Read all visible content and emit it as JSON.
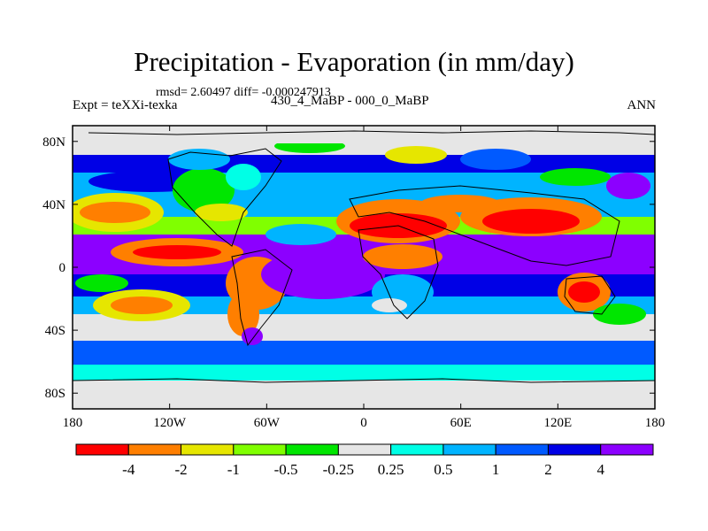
{
  "figure": {
    "title": "Precipitation - Evaporation (in mm/day)",
    "stats": "rmsd= 2.60497 diff= -0.000247913",
    "expt": "Expt = teXXi-texka",
    "period": "430_4_MaBP - 000_0_MaBP",
    "season": "ANN"
  },
  "map": {
    "projection": "cylindrical-equidistant",
    "lon_range": [
      -180,
      180
    ],
    "lat_range": [
      -90,
      90
    ],
    "coastlines": true,
    "x_ticks": [
      {
        "value": -180,
        "label": "180"
      },
      {
        "value": -120,
        "label": "120W"
      },
      {
        "value": -60,
        "label": "60W"
      },
      {
        "value": 0,
        "label": "0"
      },
      {
        "value": 60,
        "label": "60E"
      },
      {
        "value": 120,
        "label": "120E"
      },
      {
        "value": 180,
        "label": "180"
      }
    ],
    "y_ticks": [
      {
        "value": 80,
        "label": "80N"
      },
      {
        "value": 40,
        "label": "40N"
      },
      {
        "value": 0,
        "label": "0"
      },
      {
        "value": -40,
        "label": "40S"
      },
      {
        "value": -80,
        "label": "80S"
      }
    ]
  },
  "colorbar": {
    "colors": [
      "#ff0000",
      "#ff7f00",
      "#e6e600",
      "#80ff00",
      "#00e600",
      "#e6e6e6",
      "#00ffe6",
      "#00b4ff",
      "#005aff",
      "#0000e6",
      "#8c00ff"
    ],
    "labels": [
      "-4",
      "-2",
      "-1",
      "-0.5",
      "-0.25",
      "0.25",
      "0.5",
      "1",
      "2",
      "4"
    ]
  }
}
